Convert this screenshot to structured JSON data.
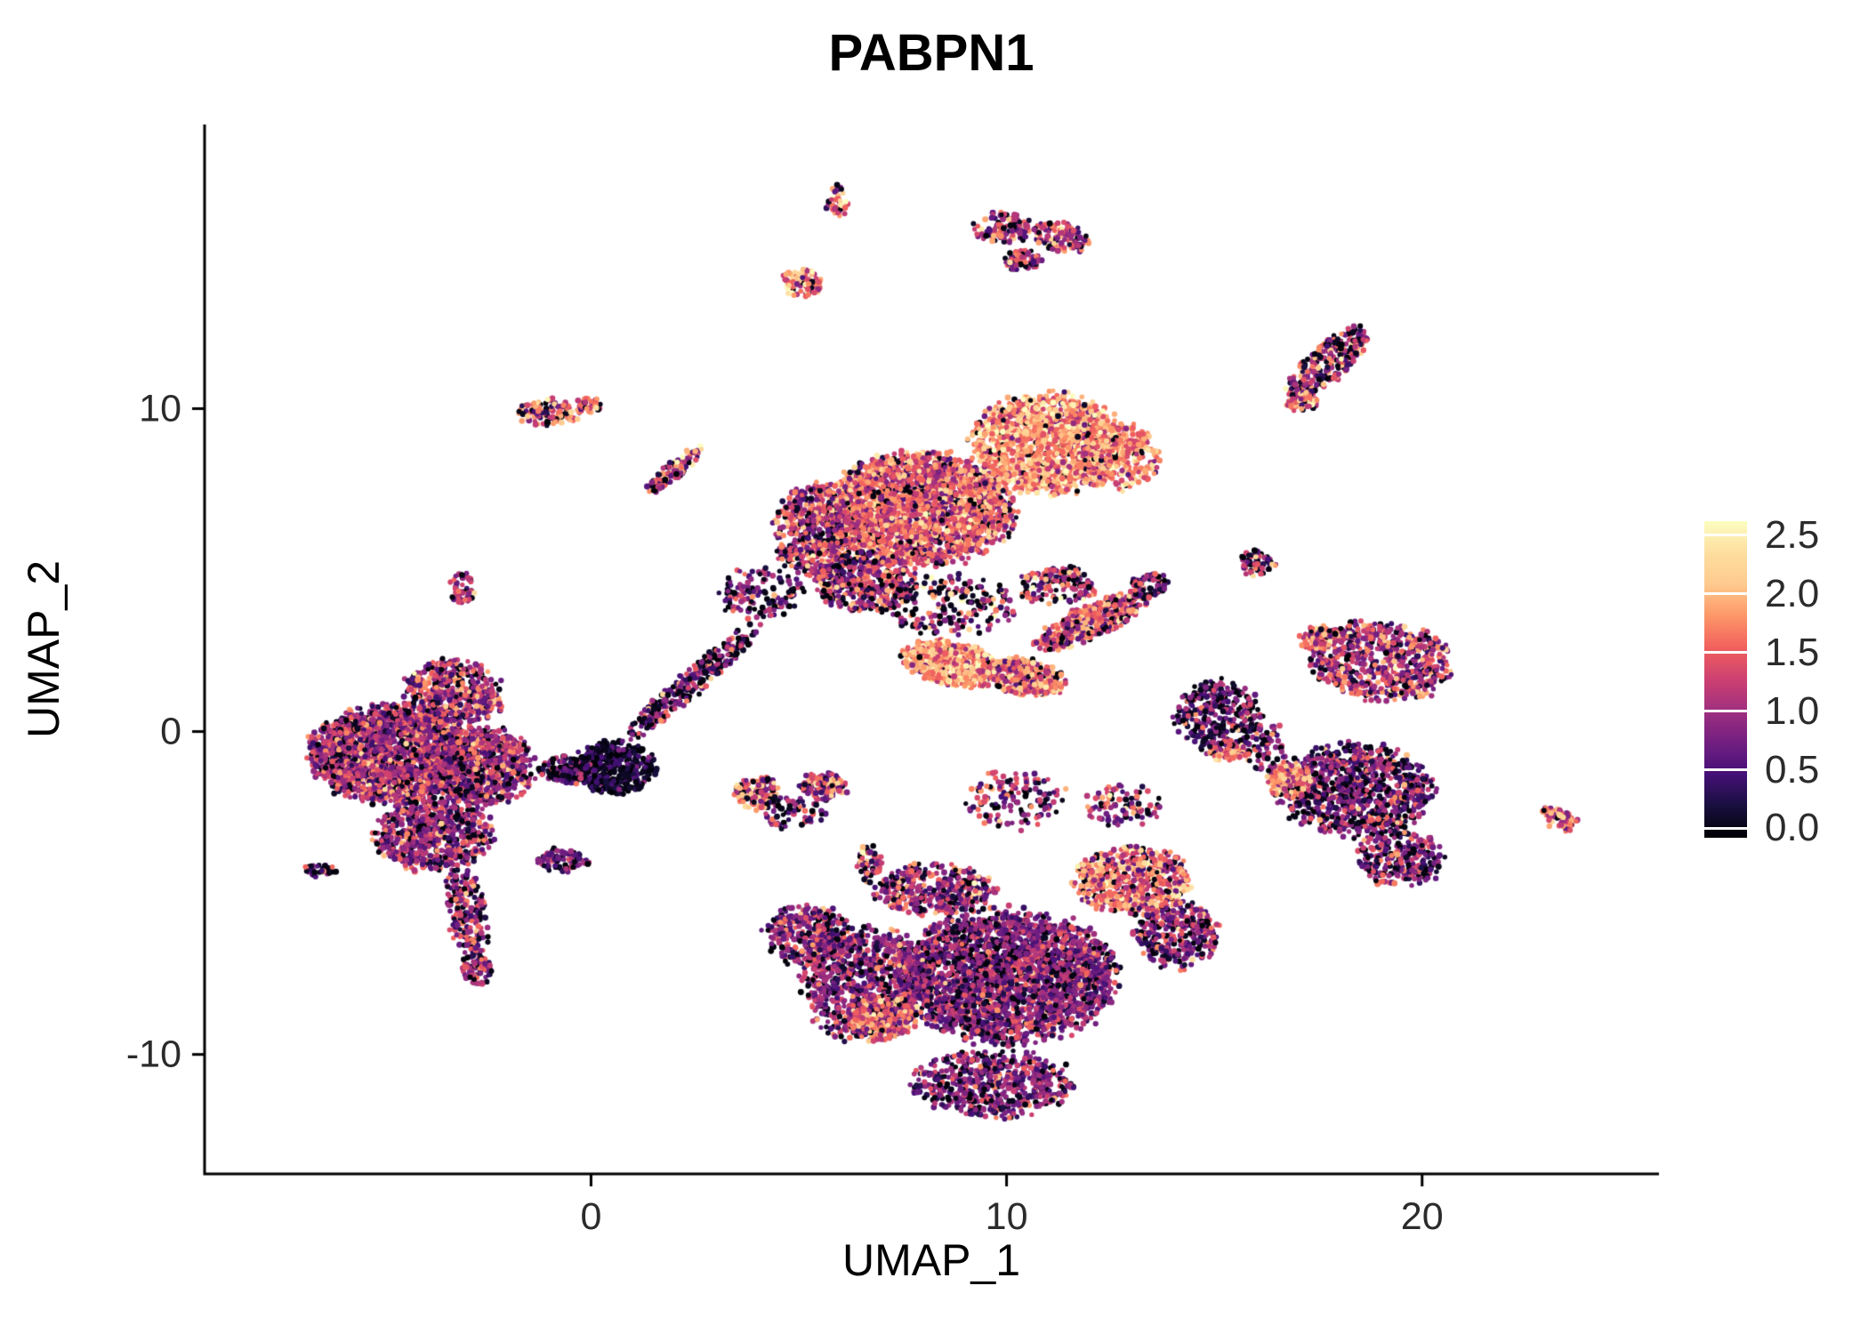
{
  "title": "PABPN1",
  "chart_data": {
    "type": "scatter",
    "title": "PABPN1",
    "xlabel": "UMAP_1",
    "ylabel": "UMAP_2",
    "xlim": [
      -9.3,
      25.7
    ],
    "ylim": [
      -13.7,
      18.8
    ],
    "x_ticks": [
      "0",
      "10",
      "20"
    ],
    "x_tick_values": [
      0,
      10,
      20
    ],
    "y_ticks": [
      "-10",
      "0",
      "10"
    ],
    "y_tick_values": [
      -10,
      0,
      10
    ],
    "grid": false,
    "background_color": "#FFFFFF",
    "axis_color": "#000000",
    "point_radius_px": 3.0,
    "expression_range": [
      0,
      2.5
    ],
    "seed": 7,
    "legend": {
      "position": "right",
      "tick_labels": [
        "2.5",
        "2.0",
        "1.5",
        "1.0",
        "0.5",
        "0.0"
      ],
      "tick_values": [
        2.5,
        2.0,
        1.5,
        1.0,
        0.5,
        0.0
      ],
      "bar_range": [
        -0.08,
        2.62
      ],
      "colormap": "magma",
      "colormap_stops": [
        "#000004",
        "#180f3e",
        "#451077",
        "#721f81",
        "#9f2f7f",
        "#cd4071",
        "#f1605d",
        "#fd9668",
        "#feca8d",
        "#fddea0",
        "#fcfdbf"
      ]
    },
    "cluster_fields": [
      "center_x",
      "center_y",
      "radius_x",
      "radius_y",
      "rotation_deg",
      "n_cells",
      "expr_mean",
      "expr_sd",
      "frac_near_zero"
    ],
    "clusters": [
      [
        -4.8,
        -0.7,
        1.9,
        1.5,
        0,
        2000,
        1.05,
        0.45,
        0.1
      ],
      [
        -2.7,
        -1.1,
        1.3,
        1.2,
        0,
        800,
        1.0,
        0.45,
        0.12
      ],
      [
        -3.3,
        1.2,
        1.2,
        1.0,
        -20,
        450,
        1.1,
        0.5,
        0.1
      ],
      [
        -3.8,
        -3.2,
        1.4,
        1.1,
        0,
        650,
        0.95,
        0.45,
        0.12
      ],
      [
        -3.0,
        -5.6,
        0.5,
        1.3,
        8,
        200,
        0.9,
        0.5,
        0.15
      ],
      [
        -2.75,
        -7.3,
        0.35,
        0.6,
        8,
        80,
        1.0,
        0.5,
        0.1
      ],
      [
        -6.5,
        -4.3,
        0.4,
        0.22,
        0,
        35,
        0.8,
        0.4,
        0.25
      ],
      [
        -0.7,
        -4.0,
        0.6,
        0.38,
        0,
        90,
        0.7,
        0.35,
        0.2
      ],
      [
        -3.1,
        4.4,
        0.3,
        0.5,
        0,
        50,
        1.0,
        0.5,
        0.1
      ],
      [
        0.55,
        -1.1,
        0.95,
        0.8,
        0,
        420,
        0.3,
        0.25,
        0.45
      ],
      [
        -0.6,
        -1.2,
        0.6,
        0.45,
        0,
        130,
        0.6,
        0.4,
        0.3
      ],
      [
        -1.0,
        9.9,
        0.75,
        0.42,
        0,
        110,
        1.3,
        0.6,
        0.1
      ],
      [
        -0.05,
        10.1,
        0.3,
        0.25,
        0,
        40,
        1.5,
        0.5,
        0.05
      ],
      [
        2.0,
        8.1,
        0.95,
        0.22,
        47,
        110,
        1.3,
        0.7,
        0.1
      ],
      [
        2.4,
        1.5,
        2.3,
        0.35,
        48,
        300,
        0.8,
        0.5,
        0.3
      ],
      [
        4.1,
        4.3,
        1.0,
        0.8,
        0,
        130,
        0.9,
        0.5,
        0.25
      ],
      [
        7.9,
        6.9,
        2.2,
        1.7,
        0,
        2300,
        1.45,
        0.45,
        0.07
      ],
      [
        11.0,
        8.9,
        1.8,
        1.5,
        0,
        1450,
        1.75,
        0.4,
        0.04
      ],
      [
        12.7,
        8.5,
        1.0,
        1.0,
        0,
        280,
        1.6,
        0.45,
        0.05
      ],
      [
        5.4,
        6.2,
        1.0,
        1.4,
        0,
        550,
        1.2,
        0.5,
        0.15
      ],
      [
        6.6,
        4.6,
        1.2,
        0.9,
        0,
        420,
        1.1,
        0.5,
        0.2
      ],
      [
        8.6,
        3.9,
        1.6,
        0.9,
        0,
        220,
        1.0,
        0.6,
        0.3
      ],
      [
        5.9,
        16.4,
        0.25,
        0.5,
        0,
        40,
        1.3,
        0.6,
        0.15
      ],
      [
        9.9,
        15.6,
        0.7,
        0.5,
        0,
        110,
        1.1,
        0.55,
        0.15
      ],
      [
        11.3,
        15.3,
        0.7,
        0.45,
        -20,
        110,
        1.2,
        0.55,
        0.1
      ],
      [
        10.4,
        14.6,
        0.5,
        0.32,
        0,
        60,
        1.0,
        0.5,
        0.2
      ],
      [
        5.1,
        13.9,
        0.5,
        0.45,
        0,
        90,
        1.6,
        0.5,
        0.05
      ],
      [
        17.7,
        11.4,
        1.4,
        0.5,
        50,
        320,
        1.1,
        0.6,
        0.15
      ],
      [
        17.1,
        10.2,
        0.4,
        0.3,
        0,
        60,
        1.4,
        0.5,
        0.1
      ],
      [
        8.7,
        2.1,
        1.2,
        0.65,
        -15,
        650,
        1.75,
        0.45,
        0.05
      ],
      [
        10.4,
        1.7,
        1.0,
        0.55,
        -15,
        350,
        1.55,
        0.5,
        0.08
      ],
      [
        12.0,
        3.4,
        1.5,
        0.5,
        30,
        380,
        1.3,
        0.5,
        0.1
      ],
      [
        13.4,
        4.5,
        0.5,
        0.35,
        30,
        90,
        1.0,
        0.5,
        0.15
      ],
      [
        11.2,
        4.5,
        0.9,
        0.6,
        0,
        150,
        1.2,
        0.6,
        0.2
      ],
      [
        16.0,
        5.2,
        0.5,
        0.4,
        0,
        60,
        0.9,
        0.5,
        0.25
      ],
      [
        15.1,
        0.5,
        1.0,
        1.1,
        0,
        320,
        0.75,
        0.45,
        0.3
      ],
      [
        15.3,
        -0.6,
        0.5,
        0.3,
        0,
        60,
        1.6,
        0.4,
        0.05
      ],
      [
        19.0,
        2.2,
        1.7,
        1.2,
        -10,
        680,
        1.15,
        0.5,
        0.1
      ],
      [
        17.5,
        2.9,
        0.5,
        0.35,
        0,
        80,
        1.6,
        0.4,
        0.05
      ],
      [
        18.4,
        -1.8,
        1.8,
        1.4,
        0,
        950,
        0.8,
        0.45,
        0.2
      ],
      [
        19.5,
        -3.9,
        1.0,
        0.9,
        0,
        280,
        0.85,
        0.5,
        0.15
      ],
      [
        16.8,
        -1.5,
        0.55,
        0.55,
        0,
        140,
        1.7,
        0.45,
        0.05
      ],
      [
        16.2,
        -0.4,
        0.5,
        0.8,
        0,
        80,
        0.9,
        0.5,
        0.2
      ],
      [
        23.3,
        -2.7,
        0.55,
        0.3,
        -35,
        75,
        1.4,
        0.4,
        0.08
      ],
      [
        4.0,
        -1.9,
        0.55,
        0.5,
        0,
        130,
        1.5,
        0.6,
        0.1
      ],
      [
        5.6,
        -1.7,
        0.55,
        0.45,
        0,
        130,
        1.2,
        0.55,
        0.15
      ],
      [
        4.8,
        -2.5,
        0.8,
        0.5,
        0,
        60,
        0.8,
        0.5,
        0.3
      ],
      [
        6.7,
        -4.1,
        0.3,
        0.55,
        0,
        60,
        1.1,
        0.8,
        0.25
      ],
      [
        10.0,
        -7.6,
        2.6,
        2.0,
        0,
        2500,
        0.85,
        0.4,
        0.12
      ],
      [
        6.6,
        -7.8,
        1.5,
        1.7,
        0,
        850,
        0.9,
        0.45,
        0.12
      ],
      [
        5.2,
        -6.3,
        1.0,
        0.9,
        0,
        320,
        0.9,
        0.45,
        0.15
      ],
      [
        8.3,
        -4.9,
        1.4,
        0.8,
        0,
        380,
        1.0,
        0.5,
        0.15
      ],
      [
        13.0,
        -4.6,
        1.4,
        1.0,
        0,
        580,
        1.5,
        0.5,
        0.08
      ],
      [
        14.1,
        -6.3,
        1.0,
        1.0,
        0,
        330,
        0.9,
        0.5,
        0.15
      ],
      [
        9.7,
        -10.9,
        1.9,
        1.0,
        0,
        580,
        0.8,
        0.4,
        0.15
      ],
      [
        7.0,
        -8.9,
        0.8,
        0.7,
        0,
        220,
        1.4,
        0.45,
        0.05
      ],
      [
        10.2,
        -2.1,
        1.2,
        0.9,
        0,
        140,
        1.1,
        0.55,
        0.2
      ],
      [
        12.8,
        -2.3,
        0.9,
        0.7,
        0,
        90,
        1.0,
        0.5,
        0.25
      ]
    ]
  }
}
